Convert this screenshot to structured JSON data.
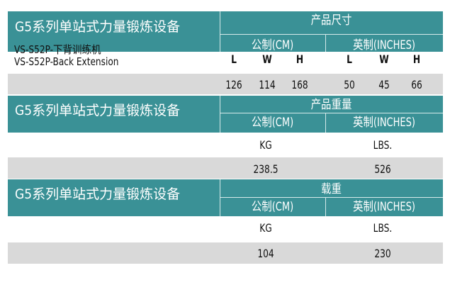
{
  "sections": [
    {
      "title": "G5系列单站式力量锻炼设备",
      "heading": "产品尺寸",
      "metric": "公制(CM)",
      "imperial": "英制(INCHES)"
    },
    {
      "title": "G5系列单站式力量锻炼设备",
      "heading": "产品重量",
      "metric": "公制(CM)",
      "imperial": "英制(INCHES)"
    },
    {
      "title": "G5系列单站式力量锻炼设备",
      "heading": "载重",
      "metric": "公制(CM)",
      "imperial": "英制(INCHES)"
    }
  ],
  "product": {
    "name_cn": "VS-S52P-下背训练机",
    "name_en": "VS-S52P-Back Extension"
  },
  "dimensions": {
    "labels": [
      "L",
      "W",
      "H",
      "L",
      "W",
      "H"
    ],
    "values": [
      "126",
      "114",
      "168",
      "50",
      "45",
      "66"
    ]
  },
  "weight": {
    "units": [
      "KG",
      "LBS."
    ],
    "values": [
      "238.5",
      "526"
    ]
  },
  "load": {
    "units": [
      "KG",
      "LBS."
    ],
    "values": [
      "104",
      "230"
    ]
  }
}
